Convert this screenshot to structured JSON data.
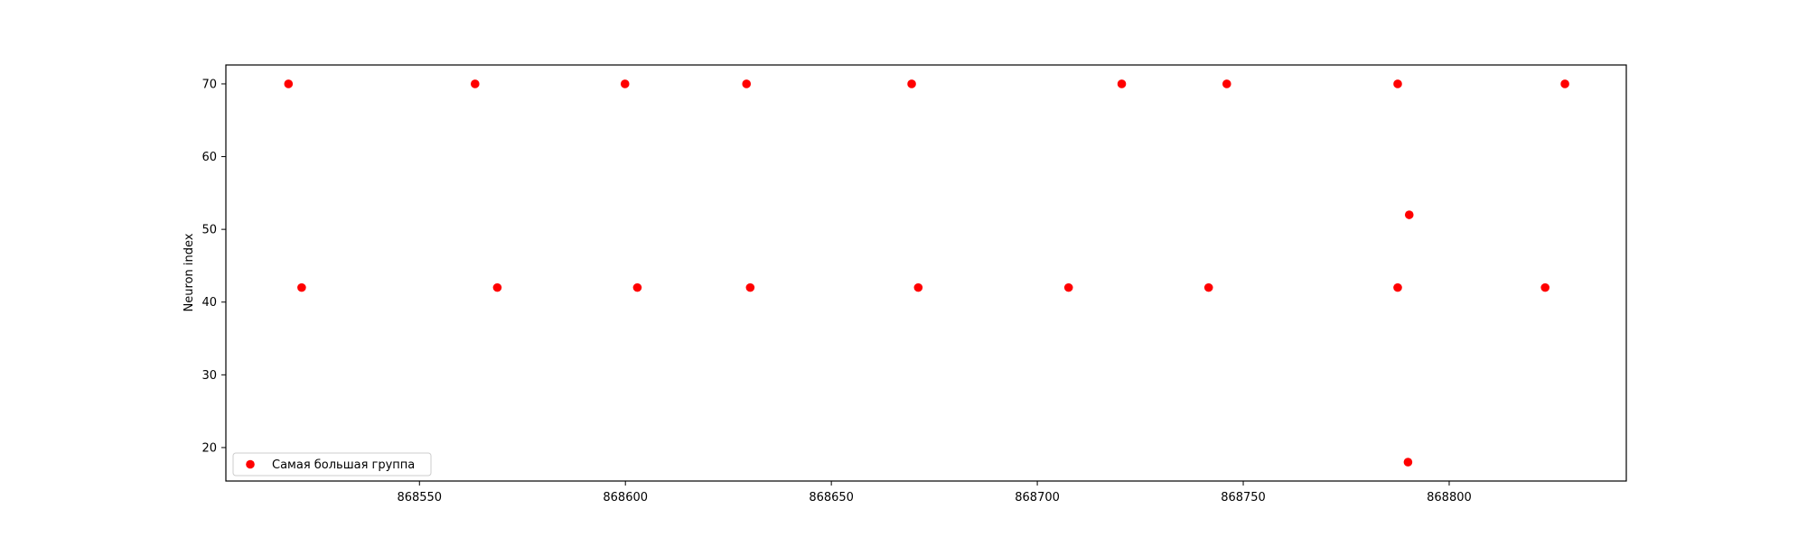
{
  "chart_data": {
    "type": "scatter",
    "title": "",
    "xlabel": "",
    "ylabel": "Neuron index",
    "xlim": [
      868503,
      868843
    ],
    "ylim": [
      15.4,
      72.6
    ],
    "xticks": [
      868550,
      868600,
      868650,
      868700,
      868750,
      868800
    ],
    "yticks": [
      20,
      30,
      40,
      50,
      60,
      70
    ],
    "grid": false,
    "legend_position": "lower-left",
    "series": [
      {
        "name": "Самая большая группа",
        "color": "#ff0000",
        "points": [
          {
            "x": 868518.2,
            "y": 70
          },
          {
            "x": 868521.4,
            "y": 42
          },
          {
            "x": 868563.5,
            "y": 70
          },
          {
            "x": 868568.9,
            "y": 42
          },
          {
            "x": 868599.9,
            "y": 70
          },
          {
            "x": 868602.9,
            "y": 42
          },
          {
            "x": 868629.4,
            "y": 70
          },
          {
            "x": 868630.3,
            "y": 42
          },
          {
            "x": 868669.5,
            "y": 70
          },
          {
            "x": 868671.1,
            "y": 42
          },
          {
            "x": 868707.6,
            "y": 42
          },
          {
            "x": 868720.5,
            "y": 70
          },
          {
            "x": 868741.6,
            "y": 42
          },
          {
            "x": 868746.0,
            "y": 70
          },
          {
            "x": 868787.5,
            "y": 70
          },
          {
            "x": 868787.5,
            "y": 42
          },
          {
            "x": 868790.0,
            "y": 18
          },
          {
            "x": 868790.3,
            "y": 52
          },
          {
            "x": 868823.3,
            "y": 42
          },
          {
            "x": 868828.1,
            "y": 70
          }
        ]
      }
    ]
  }
}
